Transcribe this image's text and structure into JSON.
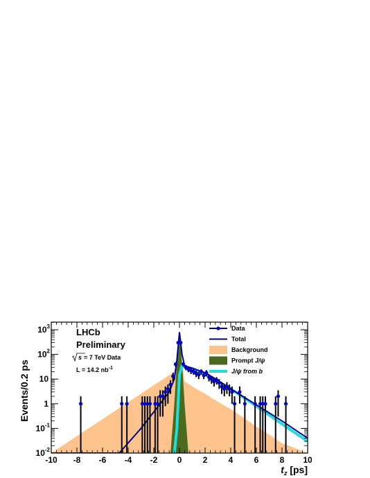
{
  "chart_data": {
    "type": "scatter",
    "title": "",
    "xlabel": "t",
    "xlabel_subscript": "z",
    "xlabel_unit": "[ps]",
    "ylabel": "Events/0.2 ps",
    "xlim": [
      -10,
      10
    ],
    "ylim": [
      0.01,
      1000
    ],
    "yscale": "log",
    "grid": false,
    "legend_position": "top-right",
    "x_ticks": [
      "-10",
      "-8",
      "-6",
      "-4",
      "-2",
      "0",
      "2",
      "4",
      "6",
      "8",
      "10"
    ],
    "y_ticks": [
      {
        "base": "10",
        "exp": "-2"
      },
      {
        "base": "10",
        "exp": "-1"
      },
      {
        "base": "1",
        "exp": ""
      },
      {
        "base": "10",
        "exp": ""
      },
      {
        "base": "10",
        "exp": "2"
      },
      {
        "base": "10",
        "exp": "3"
      }
    ],
    "annotations": {
      "experiment": "LHCb",
      "status": "Preliminary",
      "sqrt": "s",
      "energy": " = 7 TeV Data",
      "lumi_prefix": "L = 14.2 nb",
      "lumi_exp": "-1"
    },
    "legend": [
      {
        "label": "Data",
        "label_suffix": "",
        "style": "marker-line",
        "color": "#0000cc"
      },
      {
        "label": "Total",
        "label_suffix": "",
        "style": "line",
        "color": "#000099"
      },
      {
        "label": "Background",
        "label_suffix": "",
        "style": "fill",
        "color": "#fcc48c"
      },
      {
        "label": "Prompt ",
        "label_suffix": "J/ψ",
        "style": "fill",
        "color": "#4a6b1e"
      },
      {
        "label": "",
        "label_suffix": "J/ψ from b",
        "style": "line",
        "color": "#22dddd"
      }
    ],
    "series": [
      {
        "name": "Data",
        "points": [
          {
            "x": -7.7,
            "y": 1,
            "err": [
              0.01,
              2
            ]
          },
          {
            "x": -4.5,
            "y": 1,
            "err": [
              0.01,
              2
            ]
          },
          {
            "x": -4.1,
            "y": 1,
            "err": [
              0.01,
              2
            ]
          },
          {
            "x": -2.9,
            "y": 1,
            "err": [
              0.01,
              2
            ]
          },
          {
            "x": -2.7,
            "y": 1,
            "err": [
              0.01,
              2
            ]
          },
          {
            "x": -2.5,
            "y": 1,
            "err": [
              0.01,
              2
            ]
          },
          {
            "x": -2.3,
            "y": 1,
            "err": [
              0.01,
              2
            ]
          },
          {
            "x": -1.9,
            "y": 1,
            "err": [
              0.01,
              2
            ]
          },
          {
            "x": -1.7,
            "y": 1,
            "err": [
              0.01,
              2
            ]
          },
          {
            "x": -1.5,
            "y": 2,
            "err": [
              0.3,
              3.5
            ]
          },
          {
            "x": -1.3,
            "y": 2,
            "err": [
              0.3,
              3.5
            ]
          },
          {
            "x": -1.1,
            "y": 3,
            "err": [
              0.8,
              5
            ]
          },
          {
            "x": -0.9,
            "y": 4,
            "err": [
              1,
              6
            ]
          },
          {
            "x": -0.7,
            "y": 6,
            "err": [
              2.5,
              9
            ]
          },
          {
            "x": -0.5,
            "y": 13,
            "err": [
              8,
              18
            ]
          },
          {
            "x": -0.3,
            "y": 40,
            "err": [
              32,
              48
            ]
          },
          {
            "x": -0.1,
            "y": 300,
            "err": [
              270,
              330
            ]
          },
          {
            "x": 0.1,
            "y": 300,
            "err": [
              270,
              330
            ]
          },
          {
            "x": 0.3,
            "y": 40,
            "err": [
              32,
              48
            ]
          },
          {
            "x": 0.5,
            "y": 30,
            "err": [
              23,
              37
            ]
          },
          {
            "x": 0.7,
            "y": 25,
            "err": [
              19,
              31
            ]
          },
          {
            "x": 0.9,
            "y": 22,
            "err": [
              16,
              28
            ]
          },
          {
            "x": 1.1,
            "y": 20,
            "err": [
              15,
              25
            ]
          },
          {
            "x": 1.3,
            "y": 17,
            "err": [
              12,
              22
            ]
          },
          {
            "x": 1.5,
            "y": 15,
            "err": [
              10,
              20
            ]
          },
          {
            "x": 1.7,
            "y": 20,
            "err": [
              15,
              25
            ]
          },
          {
            "x": 1.9,
            "y": 14,
            "err": [
              10,
              18
            ]
          },
          {
            "x": 2.1,
            "y": 18,
            "err": [
              13,
              23
            ]
          },
          {
            "x": 2.3,
            "y": 12,
            "err": [
              8,
              16
            ]
          },
          {
            "x": 2.5,
            "y": 10,
            "err": [
              6.5,
              13
            ]
          },
          {
            "x": 2.7,
            "y": 8,
            "err": [
              5,
              11
            ]
          },
          {
            "x": 2.9,
            "y": 9,
            "err": [
              6,
              12
            ]
          },
          {
            "x": 3.1,
            "y": 7,
            "err": [
              4,
              10
            ]
          },
          {
            "x": 3.3,
            "y": 5,
            "err": [
              2.5,
              7.5
            ]
          },
          {
            "x": 3.5,
            "y": 4,
            "err": [
              2,
              6
            ]
          },
          {
            "x": 3.7,
            "y": 5,
            "err": [
              2.5,
              7.5
            ]
          },
          {
            "x": 3.9,
            "y": 4,
            "err": [
              2,
              6
            ]
          },
          {
            "x": 4.1,
            "y": 3,
            "err": [
              1,
              5
            ]
          },
          {
            "x": 4.3,
            "y": 1,
            "err": [
              0.01,
              2
            ]
          },
          {
            "x": 4.7,
            "y": 3,
            "err": [
              1,
              5
            ]
          },
          {
            "x": 5.1,
            "y": 1,
            "err": [
              0.01,
              2
            ]
          },
          {
            "x": 5.9,
            "y": 1,
            "err": [
              0.01,
              2
            ]
          },
          {
            "x": 6.3,
            "y": 1,
            "err": [
              0.01,
              2
            ]
          },
          {
            "x": 6.5,
            "y": 1,
            "err": [
              0.01,
              2
            ]
          },
          {
            "x": 6.7,
            "y": 1,
            "err": [
              0.01,
              2
            ]
          },
          {
            "x": 7.5,
            "y": 1,
            "err": [
              0.01,
              2
            ]
          },
          {
            "x": 7.7,
            "y": 2,
            "err": [
              0.3,
              3.5
            ]
          },
          {
            "x": 8.3,
            "y": 1,
            "err": [
              0.01,
              2
            ]
          }
        ]
      },
      {
        "name": "Total",
        "x": [
          -10,
          -4.7,
          -3,
          -1.5,
          -0.8,
          -0.4,
          -0.2,
          0,
          0.2,
          0.4,
          0.6,
          1,
          2,
          3,
          4,
          6,
          8,
          10
        ],
        "y": [
          0.01,
          0.01,
          0.1,
          1,
          3,
          10,
          60,
          800,
          100,
          35,
          32,
          28,
          18,
          9,
          4,
          0.9,
          0.2,
          0.04
        ]
      },
      {
        "name": "Background",
        "x": [
          -10,
          -0.4,
          -0.1,
          0,
          0.4,
          1,
          2,
          3,
          4,
          6,
          8,
          10
        ],
        "y": [
          0.01,
          20,
          150,
          300,
          8,
          5,
          2.5,
          1.2,
          0.6,
          0.12,
          0.025,
          0.01
        ]
      },
      {
        "name": "Prompt J/ψ",
        "x": [
          -0.7,
          -0.4,
          -0.2,
          0,
          0.2,
          0.4,
          0.7
        ],
        "y": [
          0.01,
          1,
          50,
          700,
          50,
          1,
          0.01
        ]
      },
      {
        "name": "J/ψ from b",
        "x": [
          -0.4,
          -0.2,
          0,
          0.2,
          0.4,
          1,
          2,
          3,
          4,
          6,
          8,
          10
        ],
        "y": [
          0.01,
          0.1,
          15,
          35,
          30,
          25,
          15,
          8,
          4,
          0.8,
          0.15,
          0.03
        ]
      }
    ]
  }
}
